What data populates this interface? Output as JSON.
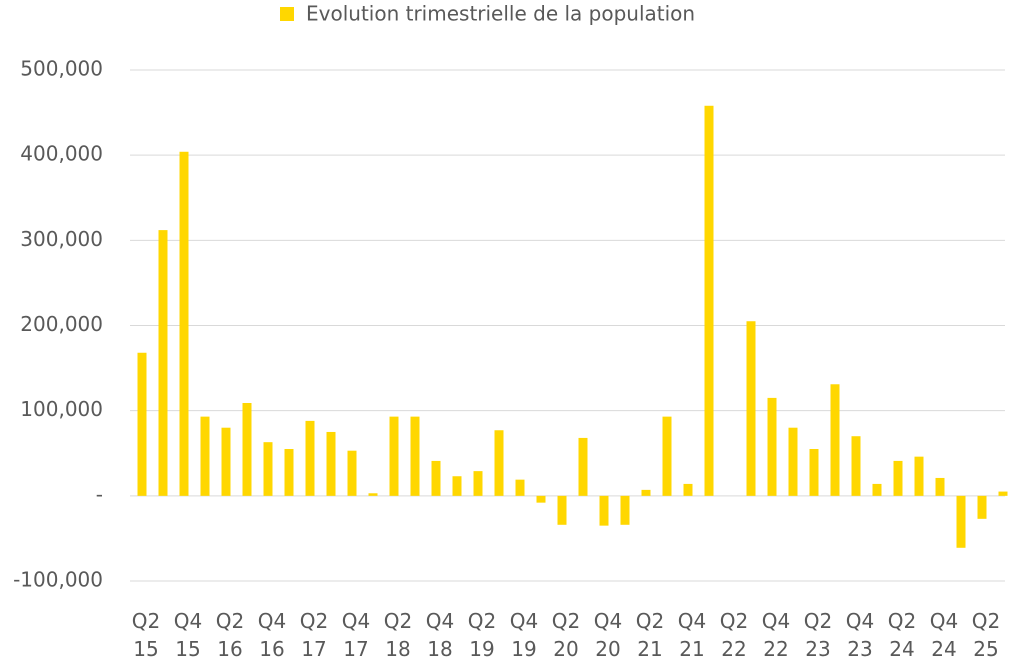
{
  "chart_data": {
    "type": "bar",
    "legend": "Evolution trimestrielle de la population",
    "legend_position": "top",
    "color": "#ffd700",
    "grid": true,
    "categories": [
      "Q2 15",
      null,
      "Q4 15",
      null,
      "Q2 16",
      null,
      "Q4 16",
      null,
      "Q2 17",
      null,
      "Q4 17",
      null,
      "Q2 18",
      null,
      "Q4 18",
      null,
      "Q2 19",
      null,
      "Q4 19",
      null,
      "Q2 20",
      null,
      "Q4 20",
      null,
      "Q2 21",
      null,
      "Q4 21",
      null,
      "Q2 22",
      null,
      "Q4 22",
      null,
      "Q2 23",
      null,
      "Q4 23",
      null,
      "Q2 24",
      null,
      "Q4 24",
      null,
      "Q2 25",
      null
    ],
    "values": [
      168000,
      312000,
      404000,
      93000,
      80000,
      109000,
      63000,
      55000,
      88000,
      75000,
      53000,
      3000,
      93000,
      93000,
      41000,
      23000,
      29000,
      77000,
      19000,
      -8000,
      -34000,
      68000,
      -35000,
      -34000,
      7000,
      93000,
      14000,
      458000,
      0,
      205000,
      115000,
      80000,
      55000,
      131000,
      70000,
      14000,
      41000,
      46000,
      21000,
      -61000,
      -27000,
      5000
    ],
    "ylim": [
      -100000,
      500000
    ],
    "yticks": [
      {
        "value": -100000,
        "label": "-100,000"
      },
      {
        "value": 0,
        "label": "-"
      },
      {
        "value": 100000,
        "label": "100,000"
      },
      {
        "value": 200000,
        "label": "200,000"
      },
      {
        "value": 300000,
        "label": "300,000"
      },
      {
        "value": 400000,
        "label": "400,000"
      },
      {
        "value": 500000,
        "label": "500,000"
      }
    ]
  }
}
